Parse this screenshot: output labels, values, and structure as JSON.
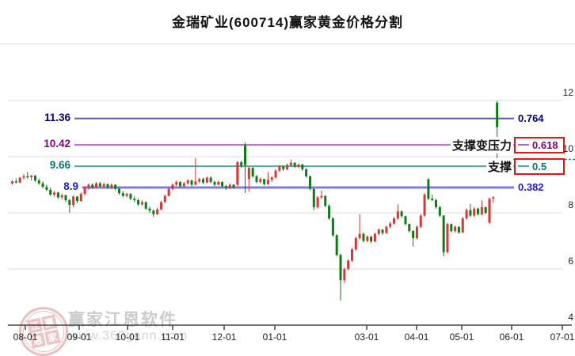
{
  "title": "金瑞矿业(600714)赢家黄金价格分割",
  "watermark": {
    "brand": "赢家江恩软件",
    "url": "www.360gann.com",
    "stamp_chars": [
      "江",
      "赢",
      "恩",
      "家"
    ]
  },
  "colors": {
    "up": "#e03232",
    "down": "#0e7c12",
    "box_border": "#e01818",
    "last_price_dash": "#00a050",
    "grid": "#dcdcdc",
    "axis": "#444444",
    "title_text": "#111111"
  },
  "chart_data": {
    "type": "candlestick",
    "title": "金瑞矿业(600714)赢家黄金价格分割",
    "y_axis": {
      "side": "right",
      "min": 4,
      "max": 12,
      "tick_labels": [
        "12",
        "10",
        "8",
        "6",
        "4"
      ],
      "tick_values": [
        12,
        10,
        8,
        6,
        4
      ]
    },
    "x_axis": {
      "tick_labels": [
        "08-01",
        "09-01",
        "10-01",
        "11-01",
        "12-01",
        "01-01",
        "03-01",
        "04-01",
        "05-01",
        "06-01",
        "07-01"
      ]
    },
    "grid": true,
    "levels": [
      {
        "price": "11.36",
        "ratio": "0.764",
        "annotation": "",
        "boxed": false,
        "line_color": "#5353b8",
        "text_color": "#000080"
      },
      {
        "price": "10.42",
        "ratio": "0.618",
        "annotation": "支撑变压力",
        "boxed": true,
        "line_color": "#b366c6",
        "text_color": "#880088"
      },
      {
        "price": "9.66",
        "ratio": "0.5",
        "annotation": "支撑",
        "boxed": true,
        "line_color": "#4fa8a8",
        "text_color": "#007878"
      },
      {
        "price": "8.9",
        "ratio": "0.382",
        "annotation": "",
        "boxed": false,
        "line_color": "#7b7bee",
        "text_color": "#1a1ae6"
      }
    ],
    "last_price_line": {
      "price": 9.9,
      "style": "dashed"
    },
    "candles_format": [
      "open",
      "high",
      "low",
      "close"
    ],
    "candles": [
      [
        9.05,
        9.15,
        9.0,
        9.12
      ],
      [
        9.12,
        9.22,
        9.05,
        9.08
      ],
      [
        9.08,
        9.28,
        9.05,
        9.25
      ],
      [
        9.25,
        9.38,
        9.18,
        9.3
      ],
      [
        9.3,
        9.45,
        9.22,
        9.27
      ],
      [
        9.27,
        9.35,
        9.15,
        9.32
      ],
      [
        9.32,
        9.35,
        9.1,
        9.15
      ],
      [
        9.15,
        9.22,
        9.0,
        9.05
      ],
      [
        9.05,
        9.12,
        8.88,
        8.92
      ],
      [
        8.92,
        9.0,
        8.78,
        8.82
      ],
      [
        8.82,
        8.9,
        8.6,
        8.65
      ],
      [
        8.65,
        8.78,
        8.58,
        8.72
      ],
      [
        8.72,
        8.75,
        8.5,
        8.55
      ],
      [
        8.55,
        8.68,
        8.48,
        8.62
      ],
      [
        8.62,
        8.65,
        8.38,
        8.45
      ],
      [
        8.45,
        8.5,
        8.0,
        8.28
      ],
      [
        8.28,
        8.62,
        8.2,
        8.58
      ],
      [
        8.58,
        8.6,
        8.35,
        8.42
      ],
      [
        8.42,
        8.72,
        8.4,
        8.68
      ],
      [
        8.68,
        8.95,
        8.62,
        8.9
      ],
      [
        8.9,
        9.05,
        8.82,
        9.0
      ],
      [
        9.0,
        9.05,
        8.85,
        8.9
      ],
      [
        8.9,
        9.1,
        8.87,
        9.05
      ],
      [
        9.05,
        9.1,
        8.9,
        8.95
      ],
      [
        8.95,
        9.08,
        8.88,
        9.02
      ],
      [
        9.02,
        9.05,
        8.85,
        8.9
      ],
      [
        8.9,
        9.05,
        8.85,
        9.0
      ],
      [
        9.0,
        9.02,
        8.8,
        8.85
      ],
      [
        8.85,
        8.9,
        8.65,
        8.7
      ],
      [
        8.7,
        8.78,
        8.55,
        8.6
      ],
      [
        8.6,
        8.72,
        8.55,
        8.67
      ],
      [
        8.67,
        8.7,
        8.45,
        8.5
      ],
      [
        8.5,
        8.58,
        8.38,
        8.45
      ],
      [
        8.45,
        8.5,
        8.25,
        8.3
      ],
      [
        8.3,
        8.45,
        8.25,
        8.38
      ],
      [
        8.38,
        8.4,
        8.1,
        8.15
      ],
      [
        8.15,
        8.22,
        8.0,
        8.08
      ],
      [
        8.08,
        8.12,
        7.85,
        7.95
      ],
      [
        7.95,
        8.18,
        7.92,
        8.12
      ],
      [
        8.12,
        8.42,
        8.1,
        8.38
      ],
      [
        8.38,
        8.65,
        8.35,
        8.6
      ],
      [
        8.6,
        8.9,
        8.58,
        8.85
      ],
      [
        8.85,
        9.05,
        8.8,
        9.0
      ],
      [
        9.0,
        9.15,
        8.95,
        9.1
      ],
      [
        9.1,
        9.12,
        8.9,
        8.95
      ],
      [
        8.95,
        9.1,
        8.92,
        9.05
      ],
      [
        9.05,
        9.2,
        9.0,
        9.15
      ],
      [
        9.15,
        9.18,
        8.95,
        9.0
      ],
      [
        9.0,
        9.95,
        8.98,
        9.12
      ],
      [
        9.12,
        9.25,
        9.05,
        9.2
      ],
      [
        9.2,
        9.25,
        9.02,
        9.08
      ],
      [
        9.08,
        9.3,
        9.05,
        9.25
      ],
      [
        9.25,
        9.3,
        9.05,
        9.1
      ],
      [
        9.1,
        9.15,
        8.95,
        9.0
      ],
      [
        9.0,
        9.15,
        8.98,
        9.1
      ],
      [
        9.1,
        9.12,
        8.9,
        8.95
      ],
      [
        8.95,
        9.0,
        8.82,
        8.88
      ],
      [
        8.88,
        9.05,
        8.85,
        9.0
      ],
      [
        9.0,
        9.02,
        8.85,
        8.9
      ],
      [
        9.0,
        9.85,
        8.95,
        9.8
      ],
      [
        9.8,
        9.85,
        9.6,
        9.68
      ],
      [
        10.4,
        10.5,
        8.7,
        9.7
      ],
      [
        9.2,
        9.65,
        8.75,
        9.6
      ],
      [
        9.6,
        9.62,
        9.25,
        9.3
      ],
      [
        9.3,
        9.35,
        9.05,
        9.1
      ],
      [
        9.1,
        9.25,
        9.05,
        9.2
      ],
      [
        9.2,
        9.22,
        8.98,
        9.02
      ],
      [
        9.02,
        9.45,
        9.0,
        9.18
      ],
      [
        9.18,
        9.3,
        9.1,
        9.26
      ],
      [
        9.26,
        9.55,
        9.22,
        9.5
      ],
      [
        9.5,
        9.7,
        9.45,
        9.65
      ],
      [
        9.65,
        9.68,
        9.5,
        9.55
      ],
      [
        9.55,
        9.75,
        9.52,
        9.7
      ],
      [
        9.7,
        9.9,
        9.65,
        9.78
      ],
      [
        9.78,
        9.8,
        9.6,
        9.65
      ],
      [
        9.65,
        9.75,
        9.6,
        9.72
      ],
      [
        9.72,
        9.74,
        9.5,
        9.55
      ],
      [
        9.55,
        9.58,
        9.25,
        9.3
      ],
      [
        9.3,
        9.32,
        8.8,
        8.85
      ],
      [
        8.85,
        8.88,
        8.1,
        8.2
      ],
      [
        8.2,
        8.6,
        8.15,
        8.55
      ],
      [
        8.55,
        8.8,
        8.5,
        8.6
      ],
      [
        8.6,
        8.62,
        8.2,
        8.25
      ],
      [
        8.25,
        8.3,
        7.75,
        7.8
      ],
      [
        7.8,
        7.85,
        7.15,
        7.2
      ],
      [
        7.2,
        7.25,
        6.45,
        6.5
      ],
      [
        6.5,
        6.55,
        4.88,
        5.6
      ],
      [
        5.6,
        6.05,
        5.5,
        6.0
      ],
      [
        6.0,
        6.35,
        5.95,
        6.3
      ],
      [
        6.3,
        6.75,
        6.25,
        6.7
      ],
      [
        6.7,
        7.15,
        6.65,
        7.1
      ],
      [
        7.1,
        7.95,
        7.05,
        7.25
      ],
      [
        7.25,
        7.3,
        6.95,
        7.0
      ],
      [
        7.0,
        7.2,
        6.95,
        7.15
      ],
      [
        7.15,
        7.18,
        6.92,
        6.98
      ],
      [
        6.98,
        7.3,
        6.95,
        7.25
      ],
      [
        7.25,
        7.45,
        7.2,
        7.4
      ],
      [
        7.4,
        7.42,
        7.22,
        7.28
      ],
      [
        7.28,
        7.55,
        7.25,
        7.5
      ],
      [
        7.5,
        7.68,
        7.45,
        7.62
      ],
      [
        7.62,
        7.85,
        7.58,
        7.8
      ],
      [
        7.8,
        8.3,
        7.75,
        8.05
      ],
      [
        8.05,
        8.08,
        7.82,
        7.88
      ],
      [
        7.88,
        7.9,
        7.55,
        7.6
      ],
      [
        7.6,
        7.62,
        7.3,
        7.35
      ],
      [
        7.35,
        7.38,
        6.8,
        7.1
      ],
      [
        7.1,
        7.55,
        7.05,
        7.5
      ],
      [
        7.5,
        7.95,
        7.45,
        7.9
      ],
      [
        7.9,
        8.7,
        7.85,
        8.65
      ],
      [
        9.2,
        9.22,
        8.45,
        8.5
      ],
      [
        8.5,
        8.65,
        8.42,
        8.45
      ],
      [
        8.45,
        8.5,
        8.15,
        8.2
      ],
      [
        8.2,
        8.25,
        7.85,
        7.9
      ],
      [
        7.9,
        7.92,
        6.45,
        6.6
      ],
      [
        6.6,
        7.65,
        6.55,
        7.6
      ],
      [
        7.6,
        7.62,
        7.3,
        7.35
      ],
      [
        7.35,
        7.55,
        7.3,
        7.5
      ],
      [
        7.5,
        7.52,
        7.25,
        7.3
      ],
      [
        7.3,
        7.85,
        7.28,
        7.8
      ],
      [
        7.8,
        8.15,
        7.75,
        8.1
      ],
      [
        8.1,
        8.32,
        7.85,
        7.9
      ],
      [
        7.9,
        8.2,
        7.85,
        8.15
      ],
      [
        8.15,
        8.18,
        7.9,
        7.95
      ],
      [
        7.95,
        8.45,
        7.9,
        8.2
      ],
      [
        8.2,
        8.22,
        7.95,
        8.0
      ],
      [
        7.65,
        8.55,
        7.6,
        8.5
      ],
      [
        8.5,
        8.6,
        8.35,
        8.55
      ],
      [
        11.92,
        11.98,
        9.68,
        11.05
      ]
    ]
  }
}
